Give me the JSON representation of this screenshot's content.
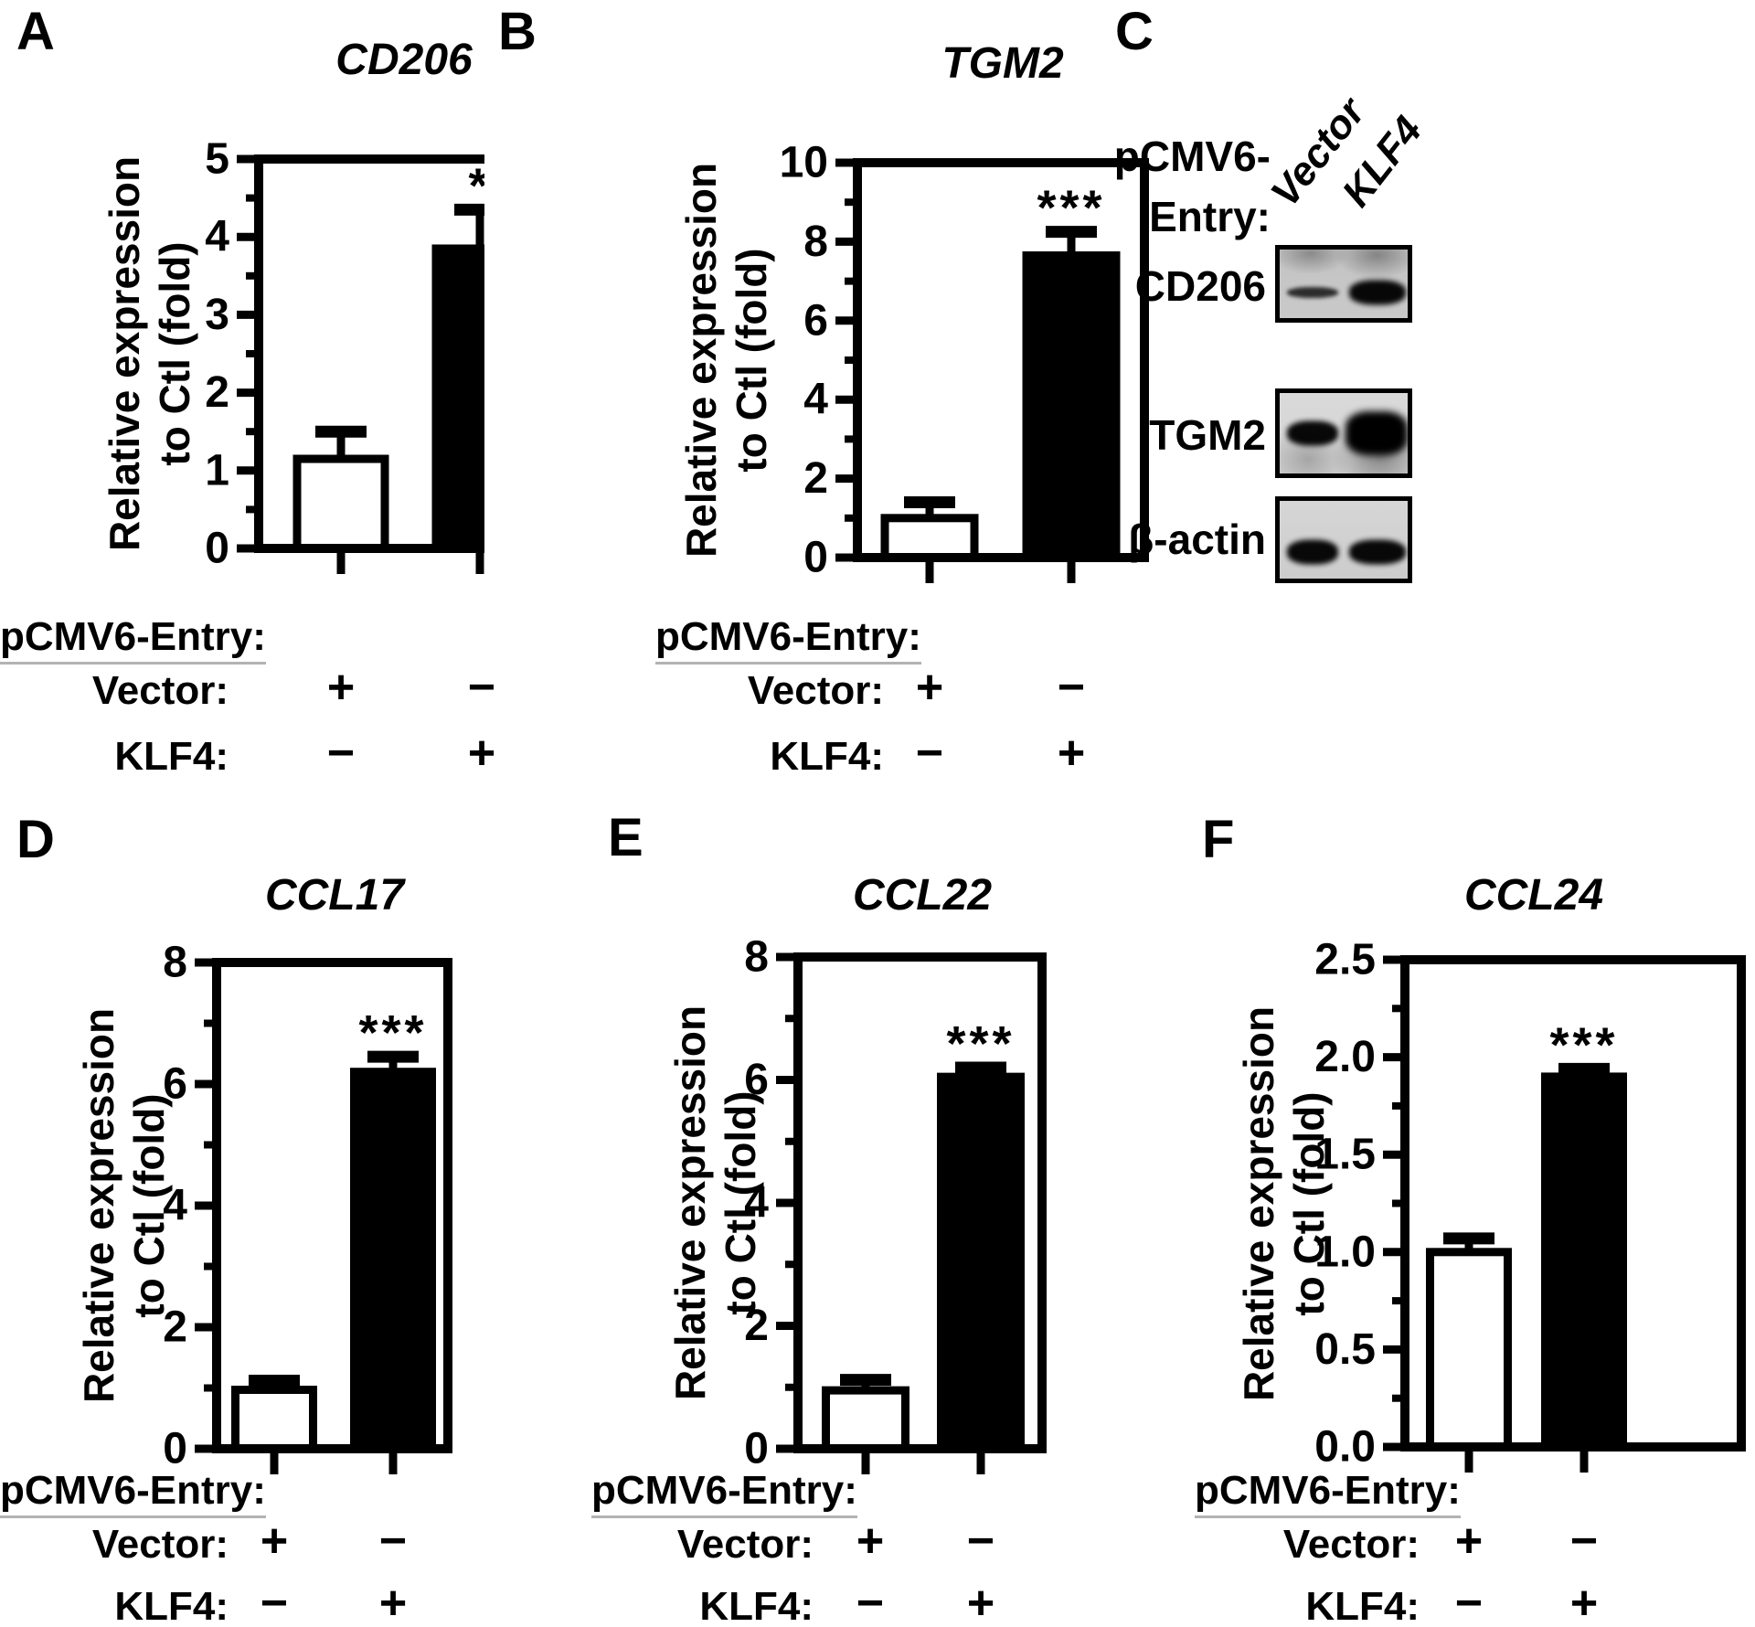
{
  "figure": {
    "background": "#ffffff",
    "ink": "#000000"
  },
  "shared": {
    "ylabel_line1": "Relative expression",
    "ylabel_line2": "to Ctl (fold)",
    "conditions_header": "pCMV6-Entry:",
    "condition_rows": [
      {
        "label": "Vector:",
        "values": [
          "+",
          "−"
        ]
      },
      {
        "label": "KLF4:",
        "values": [
          "−",
          "+"
        ]
      }
    ]
  },
  "chart_data": [
    {
      "panel": "A",
      "type": "bar",
      "title": "CD206",
      "categories": [
        "Vector",
        "KLF4"
      ],
      "values": [
        1.15,
        3.85
      ],
      "errors": [
        0.35,
        0.5
      ],
      "significance": "*",
      "xlabel": "",
      "ylabel": "Relative expression to Ctl (fold)",
      "ylim": [
        0,
        5
      ],
      "ytick_step": 1,
      "minor_tick_step": 0.5,
      "tick_decimals": 0,
      "bar_fills": [
        "#ffffff",
        "#000000"
      ],
      "grid": false,
      "legend": "none"
    },
    {
      "panel": "B",
      "type": "bar",
      "title": "TGM2",
      "categories": [
        "Vector",
        "KLF4"
      ],
      "values": [
        1.0,
        7.65
      ],
      "errors": [
        0.4,
        0.6
      ],
      "significance": "***",
      "xlabel": "",
      "ylabel": "Relative expression to Ctl (fold)",
      "ylim": [
        0,
        10
      ],
      "ytick_step": 2,
      "minor_tick_step": 1,
      "tick_decimals": 0,
      "bar_fills": [
        "#ffffff",
        "#000000"
      ],
      "grid": false,
      "legend": "none"
    },
    {
      "panel": "D",
      "type": "bar",
      "title": "CCL17",
      "categories": [
        "Vector",
        "KLF4"
      ],
      "values": [
        0.97,
        6.2
      ],
      "errors": [
        0.15,
        0.25
      ],
      "significance": "***",
      "xlabel": "",
      "ylabel": "Relative expression to Ctl (fold)",
      "ylim": [
        0,
        8
      ],
      "ytick_step": 2,
      "minor_tick_step": 1,
      "tick_decimals": 0,
      "bar_fills": [
        "#ffffff",
        "#000000"
      ],
      "grid": false,
      "legend": "none"
    },
    {
      "panel": "E",
      "type": "bar",
      "title": "CCL22",
      "categories": [
        "Vector",
        "KLF4"
      ],
      "values": [
        0.95,
        6.05
      ],
      "errors": [
        0.17,
        0.15
      ],
      "significance": "***",
      "xlabel": "",
      "ylabel": "Relative expression to Ctl (fold)",
      "ylim": [
        0,
        8
      ],
      "ytick_step": 2,
      "minor_tick_step": 1,
      "tick_decimals": 0,
      "bar_fills": [
        "#ffffff",
        "#000000"
      ],
      "grid": false,
      "legend": "none"
    },
    {
      "panel": "F",
      "type": "bar",
      "title": "CCL24",
      "categories": [
        "Vector",
        "KLF4"
      ],
      "values": [
        1.0,
        1.9
      ],
      "errors": [
        0.07,
        0.04
      ],
      "significance": "***",
      "xlabel": "",
      "ylabel": "Relative expression to Ctl (fold)",
      "ylim": [
        0,
        2.5
      ],
      "ytick_step": 0.5,
      "minor_tick_step": 0.25,
      "tick_decimals": 1,
      "bar_fills": [
        "#ffffff",
        "#000000"
      ],
      "grid": false,
      "legend": "none"
    }
  ],
  "western_blot": {
    "panel": "C",
    "header_line1": "pCMV6-",
    "header_line2": "Entry:",
    "lanes": [
      "Vector",
      "KLF4"
    ],
    "blots": [
      {
        "label": "CD206",
        "bands": [
          {
            "lane": "Vector",
            "intensity": "weak"
          },
          {
            "lane": "KLF4",
            "intensity": "strong"
          }
        ]
      },
      {
        "label": "TGM2",
        "bands": [
          {
            "lane": "Vector",
            "intensity": "strong"
          },
          {
            "lane": "KLF4",
            "intensity": "very-strong"
          }
        ]
      },
      {
        "label": "β-actin",
        "bands": [
          {
            "lane": "Vector",
            "intensity": "strong"
          },
          {
            "lane": "KLF4",
            "intensity": "strong"
          }
        ]
      }
    ]
  }
}
